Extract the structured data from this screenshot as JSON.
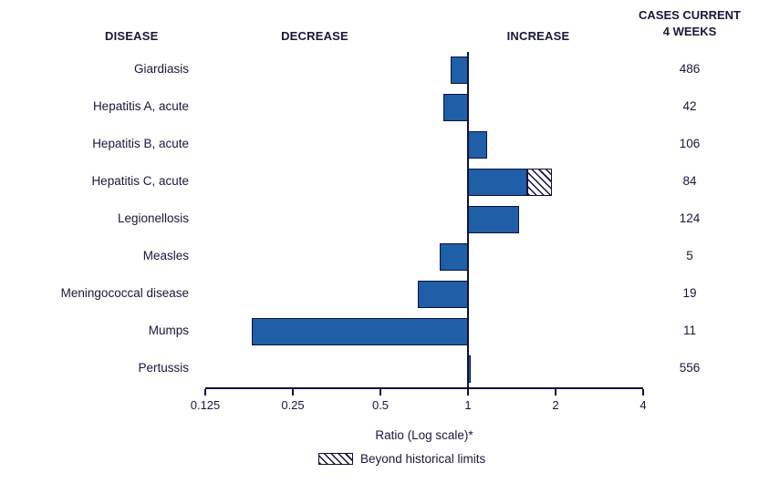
{
  "colors": {
    "bar_fill": "#1E5FA8",
    "bar_border": "#10103A",
    "text": "#18183A"
  },
  "headers": {
    "disease": "DISEASE",
    "decrease": "DECREASE",
    "increase": "INCREASE",
    "cases_line1": "CASES CURRENT",
    "cases_line2": "4 WEEKS"
  },
  "chart_data": {
    "type": "bar",
    "orientation": "horizontal",
    "scale": "log2",
    "baseline": 1,
    "xlim": [
      0.125,
      4
    ],
    "x_ticks": [
      0.125,
      0.25,
      0.5,
      1,
      2,
      4
    ],
    "x_tick_labels": [
      "0.125",
      "0.25",
      "0.5",
      "1",
      "2",
      "4"
    ],
    "xlabel": "Ratio (Log scale)*",
    "legend": {
      "label": "Beyond historical limits",
      "style": "hatched"
    },
    "rows": [
      {
        "disease": "Giardiasis",
        "ratio": 0.87,
        "beyond": null,
        "cases": "486"
      },
      {
        "disease": "Hepatitis A, acute",
        "ratio": 0.82,
        "beyond": null,
        "cases": "42"
      },
      {
        "disease": "Hepatitis B, acute",
        "ratio": 1.16,
        "beyond": null,
        "cases": "106"
      },
      {
        "disease": "Hepatitis C, acute",
        "ratio": 1.6,
        "beyond": 1.95,
        "cases": "84"
      },
      {
        "disease": "Legionellosis",
        "ratio": 1.5,
        "beyond": null,
        "cases": "124"
      },
      {
        "disease": "Measles",
        "ratio": 0.8,
        "beyond": null,
        "cases": "5"
      },
      {
        "disease": "Meningococcal disease",
        "ratio": 0.67,
        "beyond": null,
        "cases": "19"
      },
      {
        "disease": "Mumps",
        "ratio": 0.18,
        "beyond": null,
        "cases": "11"
      },
      {
        "disease": "Pertussis",
        "ratio": 1.02,
        "beyond": null,
        "cases": "556"
      }
    ]
  }
}
